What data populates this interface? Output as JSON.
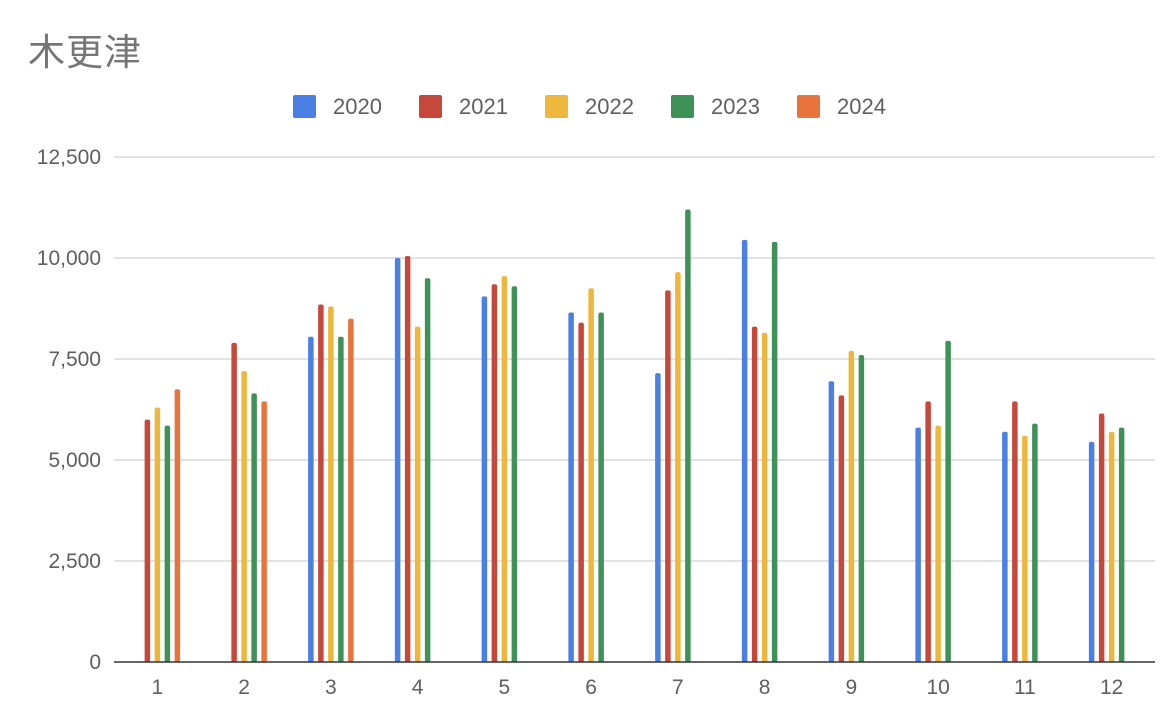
{
  "chart_data": {
    "type": "bar",
    "title": "木更津",
    "xlabel": "",
    "ylabel": "",
    "categories": [
      "1",
      "2",
      "3",
      "4",
      "5",
      "6",
      "7",
      "8",
      "9",
      "10",
      "11",
      "12"
    ],
    "ylim": [
      0,
      12500
    ],
    "yticks": [
      0,
      2500,
      5000,
      7500,
      10000,
      12500
    ],
    "ytick_labels": [
      "0",
      "2,500",
      "5,000",
      "7,500",
      "10,000",
      "12,500"
    ],
    "grid": true,
    "legend_position": "top",
    "series": [
      {
        "name": "2020",
        "color": "#4a7fe4",
        "values": [
          null,
          null,
          8050,
          10000,
          9050,
          8650,
          7150,
          10450,
          6950,
          5800,
          5700,
          5450
        ]
      },
      {
        "name": "2021",
        "color": "#c5483a",
        "values": [
          6000,
          7900,
          8850,
          10050,
          9350,
          8400,
          9200,
          8300,
          6600,
          6450,
          6450,
          6150
        ]
      },
      {
        "name": "2022",
        "color": "#ecb73a",
        "values": [
          6300,
          7200,
          8800,
          8300,
          9550,
          9250,
          9650,
          8150,
          7700,
          5850,
          5600,
          5700
        ]
      },
      {
        "name": "2023",
        "color": "#3e9157",
        "values": [
          5850,
          6650,
          8050,
          9500,
          9300,
          8650,
          11200,
          10400,
          7600,
          7950,
          5900,
          5800
        ]
      },
      {
        "name": "2024",
        "color": "#e8743b",
        "values": [
          6750,
          6450,
          8500,
          null,
          null,
          null,
          null,
          null,
          null,
          null,
          null,
          null
        ]
      }
    ]
  }
}
